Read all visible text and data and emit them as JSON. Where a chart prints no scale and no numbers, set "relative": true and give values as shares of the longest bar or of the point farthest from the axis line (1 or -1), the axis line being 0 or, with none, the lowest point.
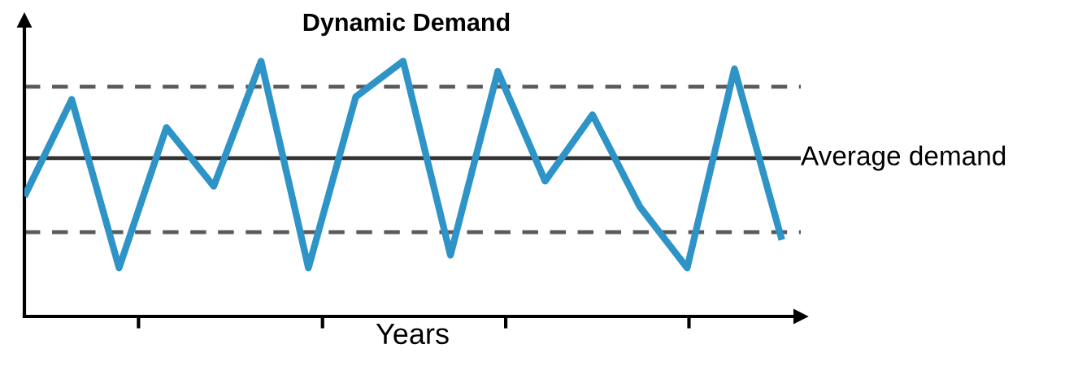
{
  "chart_data": {
    "type": "line",
    "title": "Dynamic Demand",
    "xlabel": "Years",
    "relative": true,
    "categories": [
      null,
      null,
      null,
      null,
      null,
      null,
      null,
      null,
      null,
      null,
      null,
      null,
      null,
      null,
      null,
      null,
      null
    ],
    "series": [
      {
        "color": "#2e94c8",
        "values": [
          0.47,
          0.85,
          0.19,
          0.74,
          0.51,
          1.0,
          0.19,
          0.86,
          1.0,
          0.24,
          0.96,
          0.53,
          0.79,
          0.43,
          0.19,
          0.97,
          0.3
        ]
      }
    ],
    "ref_lines": [
      {
        "axis": "y",
        "value": 0.62,
        "label": "Average demand",
        "color": "#333333",
        "line_style": "solid"
      },
      {
        "axis": "y",
        "value": 0.9,
        "label": null,
        "color": "#5a5a5a",
        "line_style": "dashed"
      },
      {
        "axis": "y",
        "value": 0.33,
        "label": null,
        "color": "#5a5a5a",
        "line_style": "dashed"
      }
    ],
    "grid": false,
    "legend": false,
    "marker": "none",
    "line_style": "solid"
  }
}
